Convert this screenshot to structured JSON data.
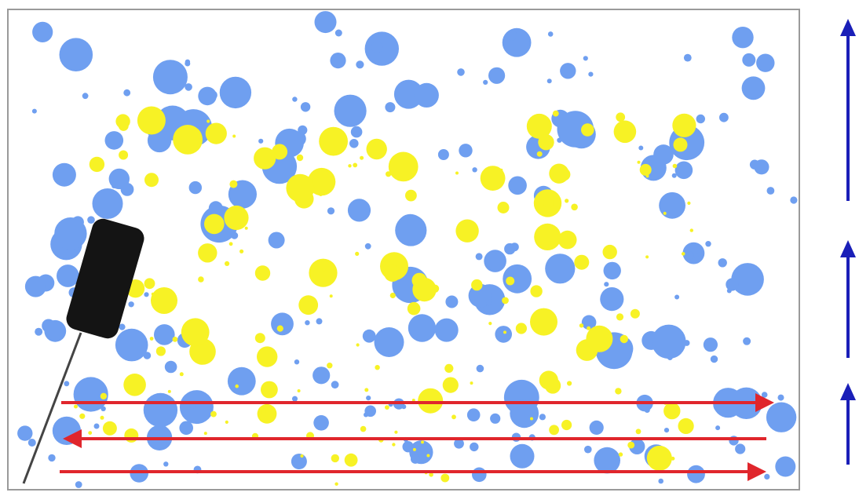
{
  "colors": {
    "background": "#ffffff",
    "frame": "#9a9a9a",
    "blue_particle": "#6f9ff0",
    "yellow_particle": "#f7f225",
    "scan_arrow": "#e0262c",
    "side_arrow": "#1a1fb8",
    "probe": "#141414"
  },
  "icons": {
    "probe": "probe-icon",
    "scan_arrow": "arrow-icon",
    "side_arrow": "arrow-up-icon"
  }
}
